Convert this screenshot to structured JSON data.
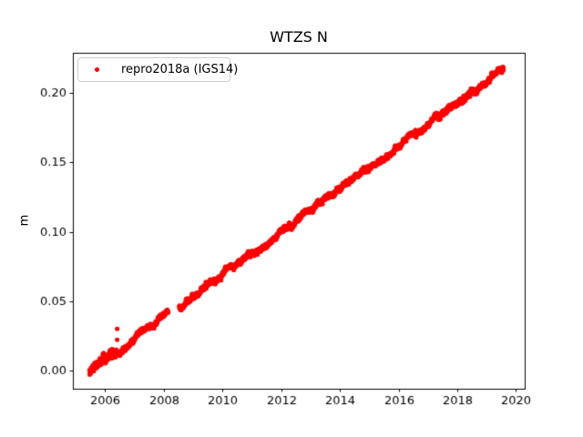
{
  "chart_data": {
    "type": "scatter",
    "title": "WTZS N",
    "xlabel": "",
    "ylabel": "m",
    "xlim": [
      2004.9,
      2020.3
    ],
    "ylim": [
      -0.0132,
      0.229
    ],
    "xticks": [
      2006,
      2008,
      2010,
      2012,
      2014,
      2016,
      2018,
      2020
    ],
    "yticks": [
      0,
      0.05,
      0.1,
      0.15,
      0.2
    ],
    "ytick_labels": [
      "0.00",
      "0.05",
      "0.10",
      "0.15",
      "0.20"
    ],
    "grid": false,
    "legend_position": "upper left",
    "frame_color": "#000000",
    "series": [
      {
        "name": "repro2018a (IGS14)",
        "color": "#ff0000",
        "marker": "dot",
        "marker_diameter_px": 5,
        "description": "Daily GNSS north-component position time series rising linearly from 0.000 m in mid-2005 to about 0.216 m in mid-2019 (~15.5 mm/yr), with a data gap during 2008 and a few positive outliers in 2006.",
        "model": {
          "t_start": 2005.47,
          "t_end": 2019.58,
          "v_start_m": -0.001,
          "slope_m_per_yr": 0.01548,
          "step_days": 2,
          "noise_sigma_m": 0.0008,
          "walk_sigma_m": 0.00035,
          "walk_clamp_m": 0.0022,
          "seasonal_amp_m": 0.0006,
          "early_noise_until": 2006.4,
          "early_noise_sigma_m": 0.0012,
          "gaps": [
            [
              2008.15,
              2008.52
            ]
          ],
          "seed": 20181
        },
        "outliers": [
          [
            2006.41,
            0.03
          ],
          [
            2006.41,
            0.022
          ],
          [
            2007.8,
            0.0382
          ],
          [
            2007.88,
            0.0392
          ]
        ]
      }
    ]
  }
}
